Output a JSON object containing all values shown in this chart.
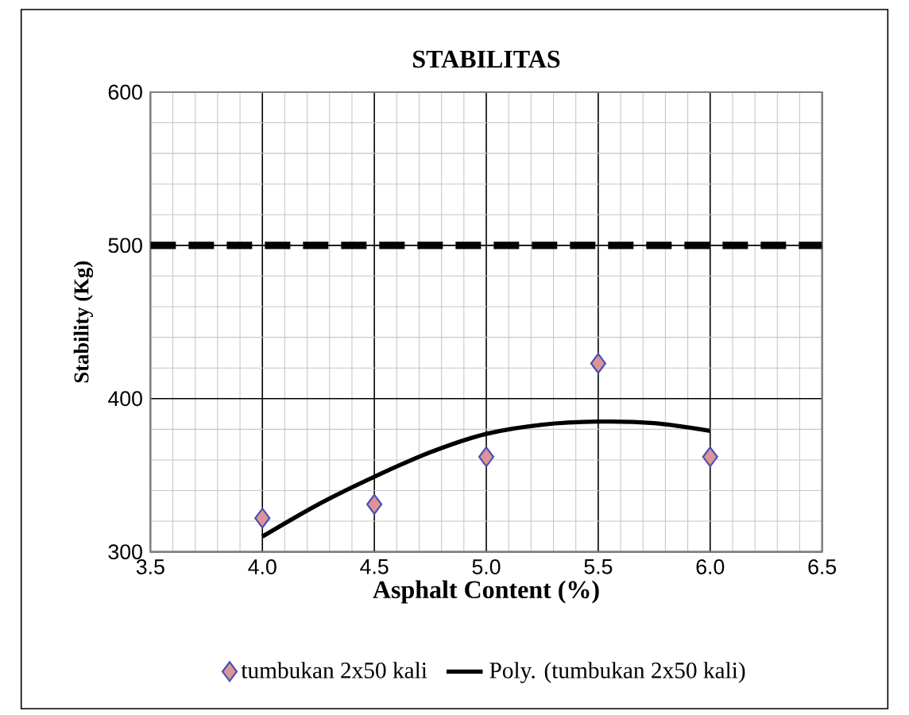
{
  "chart_data": {
    "type": "scatter",
    "title": "STABILITAS",
    "xlabel": "Asphalt Content (%)",
    "ylabel": "Stability (Kg)",
    "xlim": [
      3.5,
      6.5
    ],
    "xticks": [
      {
        "value": 3.5,
        "label": "3.5"
      },
      {
        "value": 4,
        "label": "4.0"
      },
      {
        "value": 4.5,
        "label": "4.5"
      },
      {
        "value": 5,
        "label": "5.0"
      },
      {
        "value": 5.5,
        "label": "5.5"
      },
      {
        "value": 6,
        "label": "6.0"
      },
      {
        "value": 6.5,
        "label": "6.5"
      }
    ],
    "ylim": [
      300,
      600
    ],
    "yticks": [
      300,
      400,
      500,
      600
    ],
    "grid": true,
    "legend": "bottom",
    "series": [
      {
        "name": "tumbukan 2x50 kali",
        "marker": "diamond",
        "color": "#d99694",
        "x": [
          4.0,
          4.5,
          5.0,
          5.5,
          6.0
        ],
        "values": [
          322,
          331,
          362,
          423,
          362
        ]
      },
      {
        "name": "Poly. (tumbukan 2x50 kali)",
        "type": "line",
        "line_style": "solid",
        "color": "#000000",
        "x": [
          4.0,
          4.25,
          4.5,
          4.75,
          5.0,
          5.25,
          5.5,
          5.75,
          6.0
        ],
        "values": [
          310,
          331,
          349,
          365,
          377,
          383,
          385,
          384,
          379
        ]
      }
    ],
    "ref_lines": [
      {
        "axis": "y",
        "value": 500,
        "color": "#000000",
        "line_style": "dashed"
      }
    ]
  }
}
